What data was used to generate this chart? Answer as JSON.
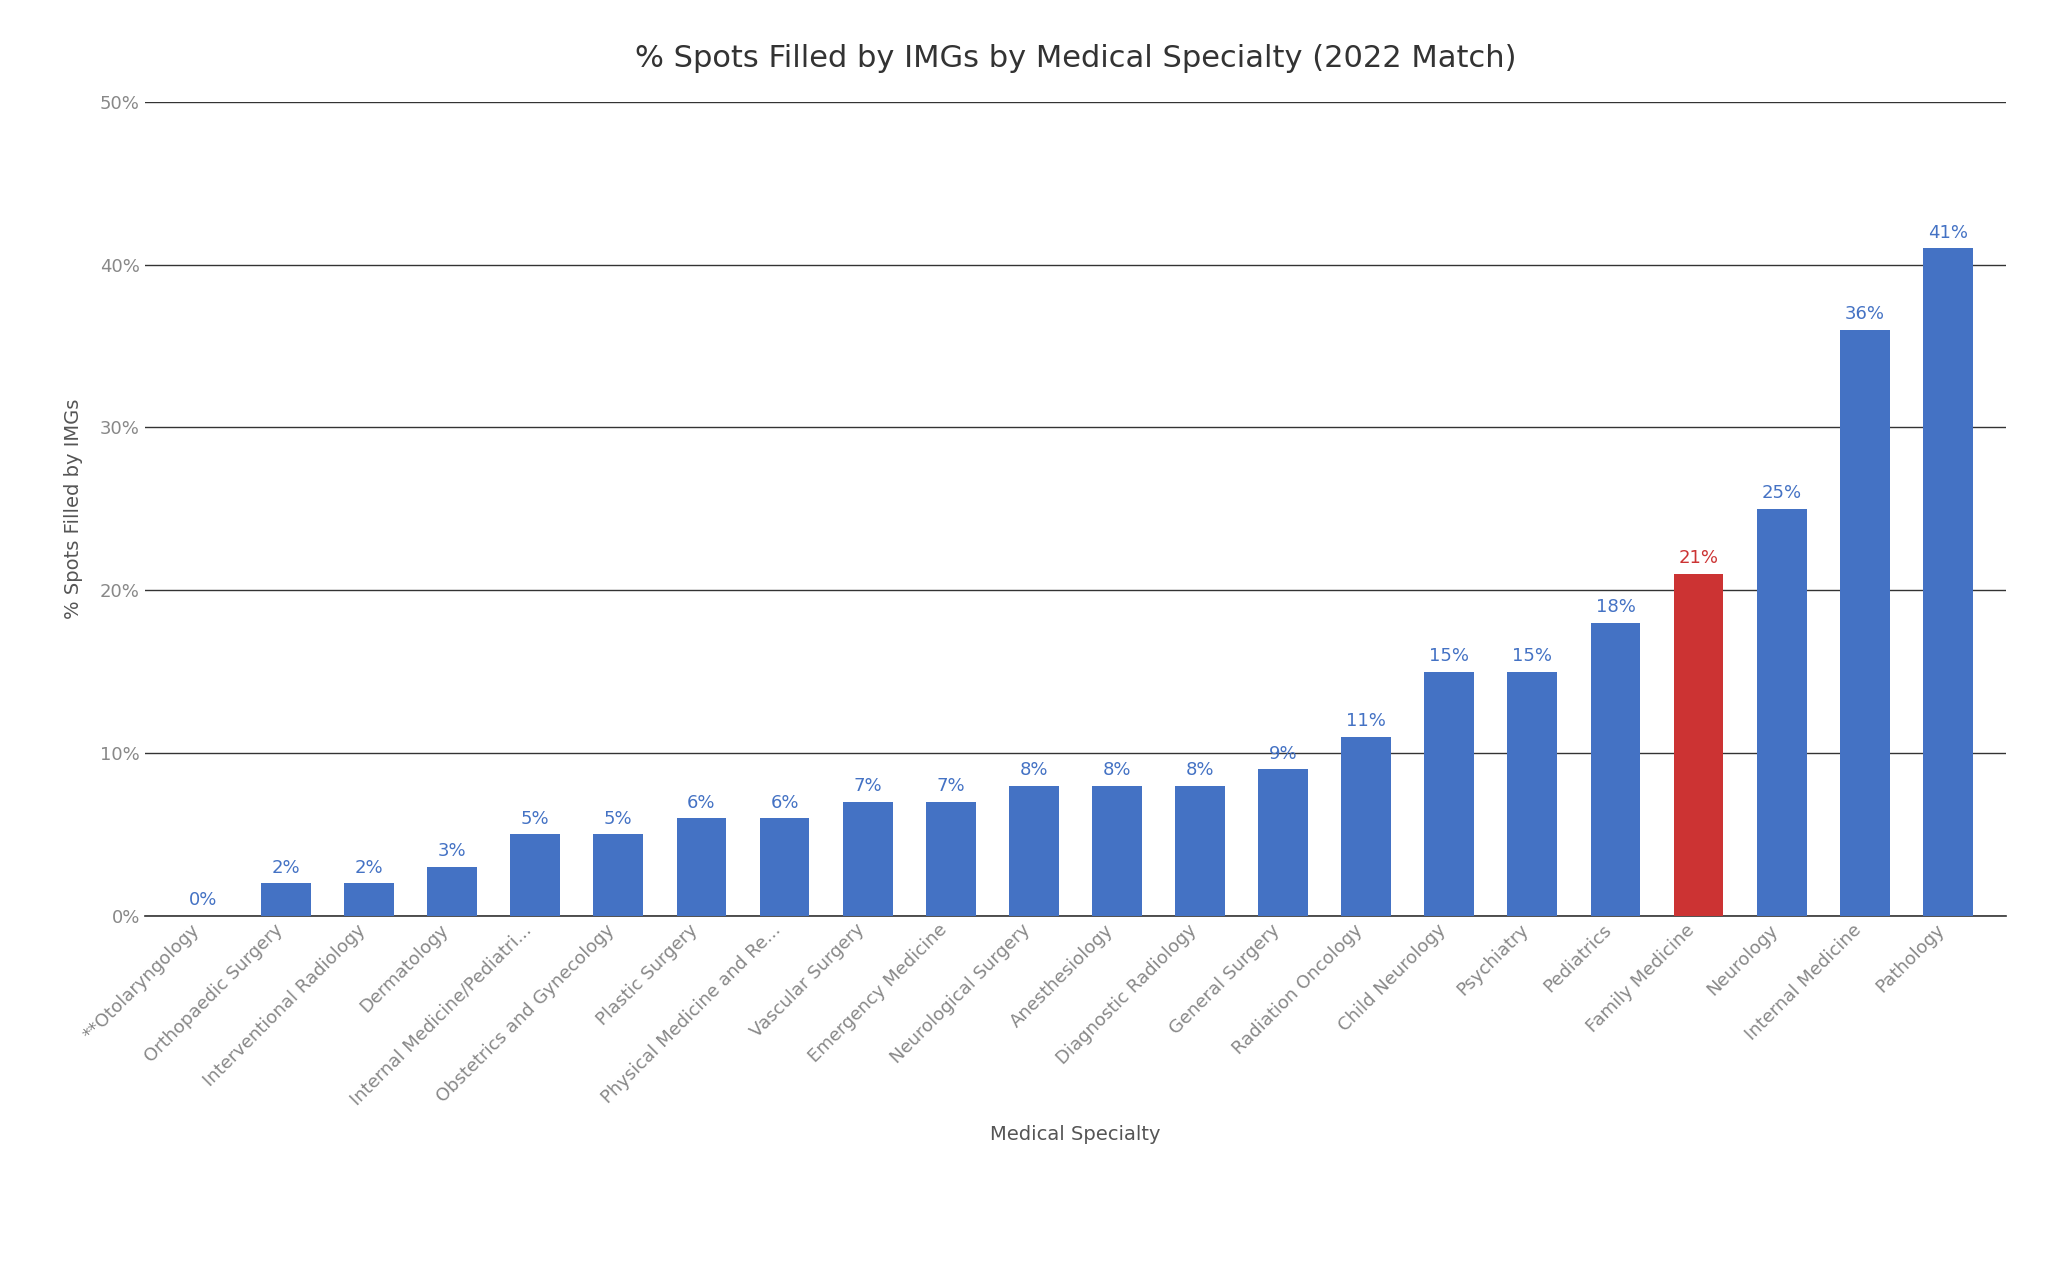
{
  "title": "% Spots Filled by IMGs by Medical Specialty (2022 Match)",
  "xlabel": "Medical Specialty",
  "ylabel": "% Spots Filled by IMGs",
  "categories": [
    "**Otolaryngology",
    "Orthopaedic Surgery",
    "Interventional Radiology",
    "Dermatology",
    "Internal Medicine/Pediatri...",
    "Obstetrics and Gynecology",
    "Plastic Surgery",
    "Physical Medicine and Re...",
    "Vascular Surgery",
    "Emergency Medicine",
    "Neurological Surgery",
    "Anesthesiology",
    "Diagnostic Radiology",
    "General Surgery",
    "Radiation Oncology",
    "Child Neurology",
    "Psychiatry",
    "Pediatrics",
    "Family Medicine",
    "Neurology",
    "Internal Medicine",
    "Pathology"
  ],
  "values": [
    0,
    2,
    2,
    3,
    5,
    5,
    6,
    6,
    7,
    7,
    8,
    8,
    8,
    9,
    11,
    15,
    15,
    18,
    21,
    25,
    36,
    41
  ],
  "bar_colors": [
    "#4472c4",
    "#4472c4",
    "#4472c4",
    "#4472c4",
    "#4472c4",
    "#4472c4",
    "#4472c4",
    "#4472c4",
    "#4472c4",
    "#4472c4",
    "#4472c4",
    "#4472c4",
    "#4472c4",
    "#4472c4",
    "#4472c4",
    "#4472c4",
    "#4472c4",
    "#4472c4",
    "#cc3333",
    "#4472c4",
    "#4472c4",
    "#4472c4"
  ],
  "label_colors": [
    "#4472c4",
    "#4472c4",
    "#4472c4",
    "#4472c4",
    "#4472c4",
    "#4472c4",
    "#4472c4",
    "#4472c4",
    "#4472c4",
    "#4472c4",
    "#4472c4",
    "#4472c4",
    "#4472c4",
    "#4472c4",
    "#4472c4",
    "#4472c4",
    "#4472c4",
    "#4472c4",
    "#cc3333",
    "#4472c4",
    "#4472c4",
    "#4472c4"
  ],
  "ylim": [
    0,
    50
  ],
  "yticks": [
    0,
    10,
    20,
    30,
    40,
    50
  ],
  "ytick_labels": [
    "0%",
    "10%",
    "20%",
    "30%",
    "40%",
    "50%"
  ],
  "background_color": "#ffffff",
  "grid_color": "#333333",
  "title_fontsize": 22,
  "axis_label_fontsize": 14,
  "tick_label_fontsize": 13,
  "bar_label_fontsize": 13,
  "tick_color": "#888888",
  "bar_width": 0.6
}
